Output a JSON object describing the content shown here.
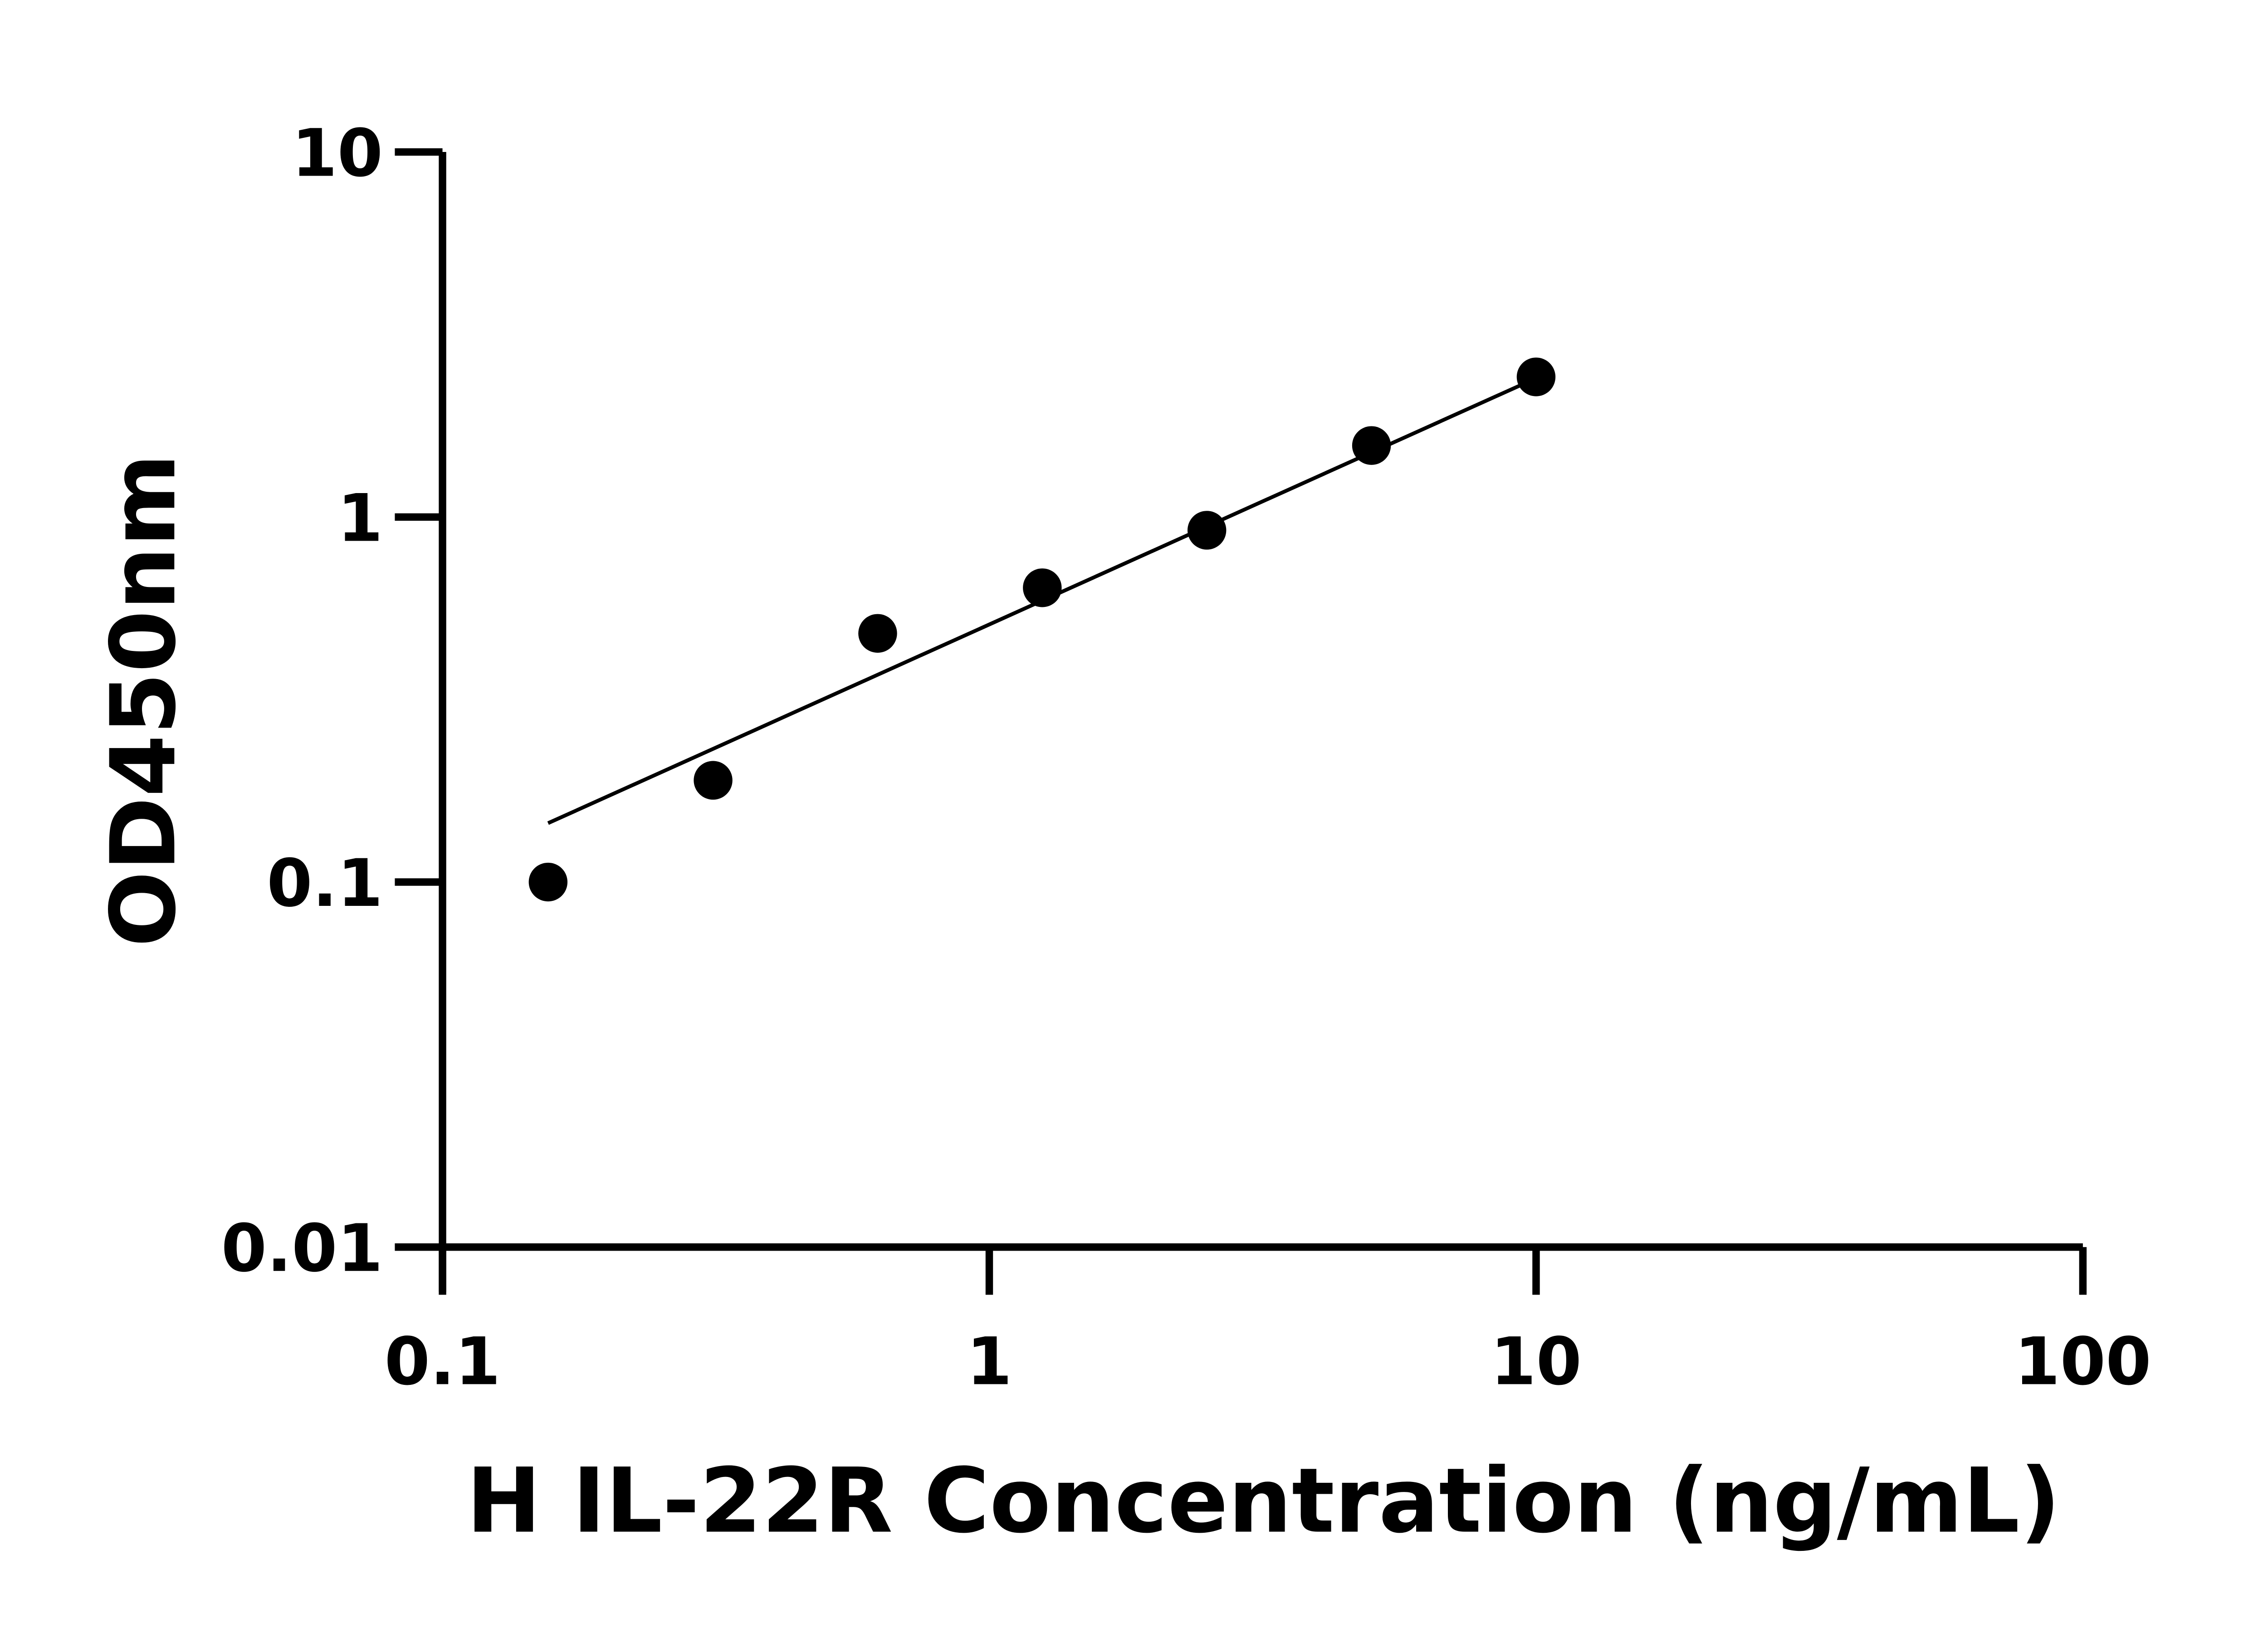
{
  "chart_data": {
    "type": "scatter",
    "title": "",
    "xlabel": "H IL-22R Concentration (ng/mL)",
    "ylabel": "OD450nm",
    "x_scale": "log",
    "y_scale": "log",
    "xlim": [
      0.1,
      100
    ],
    "ylim": [
      0.01,
      10
    ],
    "x_ticks": [
      {
        "value": 0.1,
        "label": "0.1"
      },
      {
        "value": 1,
        "label": "1"
      },
      {
        "value": 10,
        "label": "10"
      },
      {
        "value": 100,
        "label": "100"
      }
    ],
    "y_ticks": [
      {
        "value": 0.01,
        "label": "0.01"
      },
      {
        "value": 0.1,
        "label": "0.1"
      },
      {
        "value": 1,
        "label": "1"
      },
      {
        "value": 10,
        "label": "10"
      }
    ],
    "grid": false,
    "points": [
      {
        "x": 0.156,
        "y": 0.1
      },
      {
        "x": 0.3125,
        "y": 0.19
      },
      {
        "x": 0.625,
        "y": 0.48
      },
      {
        "x": 1.25,
        "y": 0.64
      },
      {
        "x": 2.5,
        "y": 0.92
      },
      {
        "x": 5,
        "y": 1.57
      },
      {
        "x": 10,
        "y": 2.42
      }
    ],
    "fit_line": {
      "x": [
        0.156,
        10
      ],
      "y": [
        0.145,
        2.4
      ]
    },
    "colors": {
      "points": "#000000",
      "line": "#000000",
      "axes": "#000000"
    }
  }
}
